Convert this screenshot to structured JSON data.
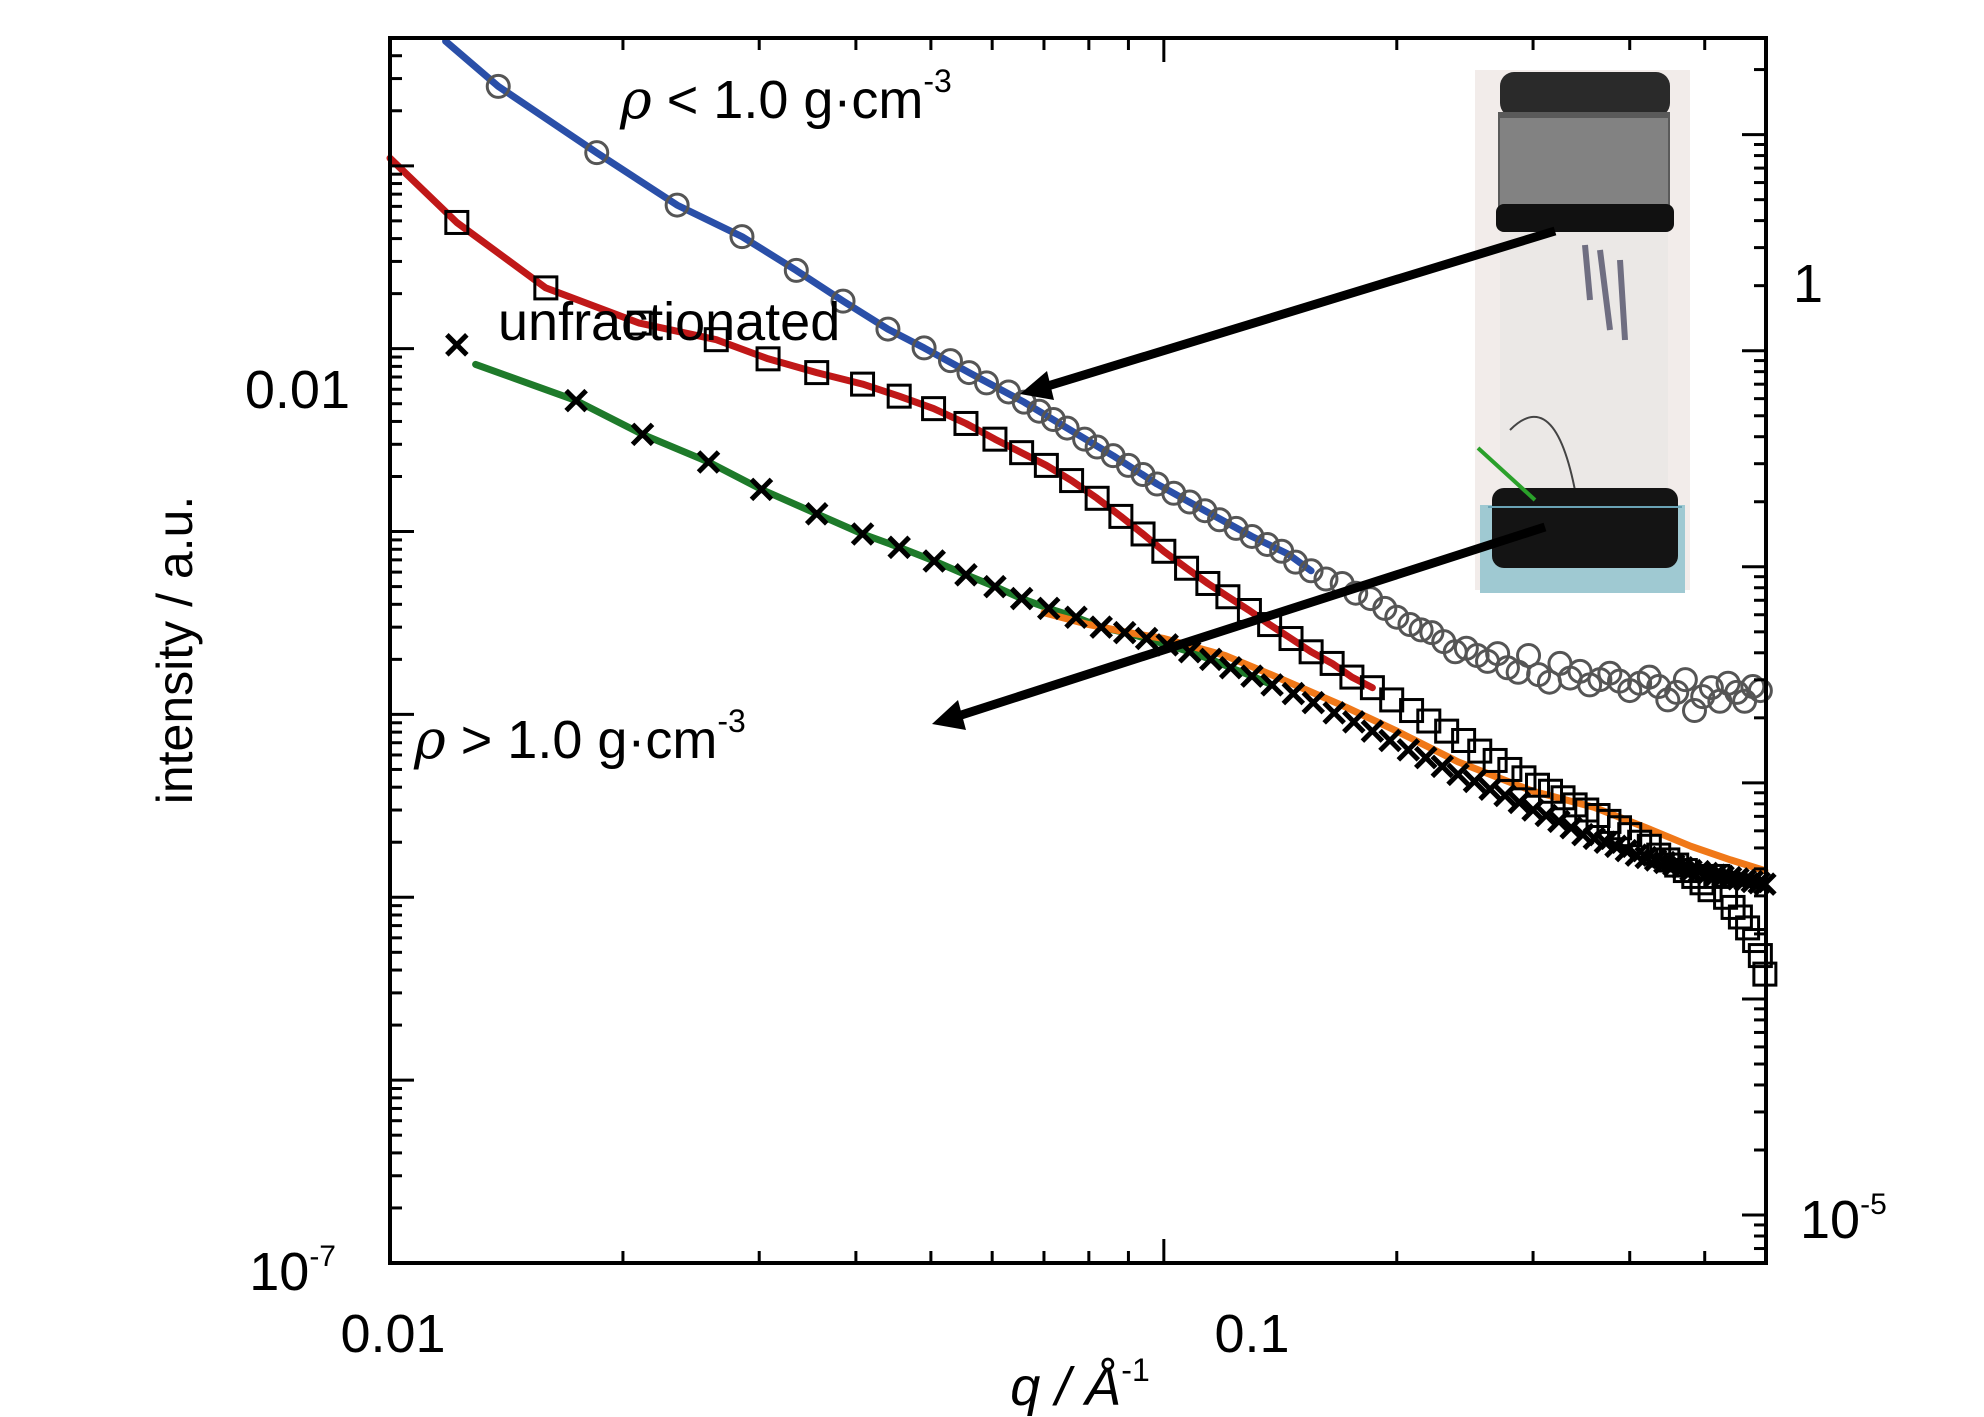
{
  "chart_data": {
    "type": "scatter",
    "title": "",
    "xlabel": "q / Å",
    "xlabel_sup": "-1",
    "ylabel": "intensity / a.u.",
    "x_scale": "log",
    "y_scale": "log",
    "xlim": [
      0.01,
      0.6
    ],
    "ylim_left": [
      1e-07,
      0.5
    ],
    "ylim_right": [
      6e-06,
      2.8
    ],
    "x_tick_labels": [
      "0.01",
      "0.1"
    ],
    "y_left_tick_labels": [
      "0.01",
      "10",
      "-7"
    ],
    "y_right_tick_labels": [
      "1",
      "10",
      "-5"
    ],
    "annotations": {
      "low_density": {
        "rho": "ρ",
        "text": " < 1.0 g·cm",
        "sup": "-3"
      },
      "unfractionated": "unfractionated",
      "high_density": {
        "rho": "ρ",
        "text": " > 1.0 g·cm",
        "sup": "-3"
      }
    },
    "colors": {
      "low_density_fit": "#2a4fa8",
      "unfractionated_fit": "#c01818",
      "high_density_fit": "#1e7a2a",
      "orange_fit": "#f07818",
      "markers": "#000000",
      "low_density_markers": "#555555"
    },
    "series": [
      {
        "marker": "circle",
        "x": [
          0.0138,
          0.0185,
          0.0235,
          0.0285,
          0.0335,
          0.0385,
          0.044,
          0.049,
          0.053,
          0.056,
          0.059,
          0.063,
          0.066,
          0.069,
          0.072,
          0.075,
          0.079,
          0.082,
          0.086,
          0.09,
          0.094,
          0.098,
          0.103,
          0.108,
          0.113,
          0.118,
          0.124,
          0.13,
          0.136,
          0.142,
          0.148,
          0.155,
          0.162,
          0.17,
          0.177,
          0.185,
          0.193,
          0.2,
          0.208,
          0.215,
          0.222,
          0.23,
          0.238,
          0.246,
          0.254,
          0.262,
          0.27,
          0.278,
          0.287,
          0.296,
          0.305,
          0.315,
          0.325,
          0.335,
          0.345,
          0.355,
          0.366,
          0.377,
          0.388,
          0.4,
          0.412,
          0.424,
          0.436,
          0.448,
          0.46,
          0.472,
          0.485,
          0.497,
          0.51,
          0.523,
          0.536,
          0.55,
          0.563,
          0.577,
          0.59
        ],
        "y": [
          0.272,
          0.118,
          0.061,
          0.041,
          0.0268,
          0.0182,
          0.0128,
          0.0101,
          0.0086,
          0.0074,
          0.0065,
          0.0058,
          0.0051,
          0.00455,
          0.0041,
          0.00368,
          0.0032,
          0.0029,
          0.0026,
          0.0023,
          0.00205,
          0.00182,
          0.00162,
          0.00145,
          0.0013,
          0.00116,
          0.00104,
          0.00094,
          0.00085,
          0.00078,
          0.00068,
          0.00061,
          0.00055,
          0.00052,
          0.00046,
          0.00043,
          0.00038,
          0.00034,
          0.00031,
          0.00029,
          0.00028,
          0.00025,
          0.00022,
          0.00023,
          0.00021,
          0.000195,
          0.000215,
          0.00018,
          0.00017,
          0.00021,
          0.000165,
          0.00015,
          0.00019,
          0.000158,
          0.000172,
          0.000145,
          0.000155,
          0.000168,
          0.000152,
          0.000135,
          0.000148,
          0.00016,
          0.000142,
          0.00012,
          0.000132,
          0.000155,
          0.000105,
          0.000125,
          0.00014,
          0.000118,
          0.000148,
          0.000132,
          0.000118,
          0.000142,
          0.000135
        ]
      },
      {
        "name": "unfractionated",
        "marker": "square",
        "x": [
          0.0122,
          0.0159,
          0.021,
          0.0264,
          0.0308,
          0.0356,
          0.0408,
          0.0455,
          0.0504,
          0.0555,
          0.0605,
          0.0655,
          0.0705,
          0.076,
          0.082,
          0.088,
          0.094,
          0.1,
          0.107,
          0.114,
          0.121,
          0.129,
          0.137,
          0.146,
          0.155,
          0.165,
          0.175,
          0.186,
          0.197,
          0.209,
          0.22,
          0.232,
          0.244,
          0.256,
          0.268,
          0.28,
          0.292,
          0.304,
          0.316,
          0.328,
          0.34,
          0.352,
          0.364,
          0.376,
          0.388,
          0.4,
          0.412,
          0.424,
          0.436,
          0.448,
          0.46,
          0.472,
          0.484,
          0.496,
          0.508,
          0.52,
          0.532,
          0.544,
          0.556,
          0.568,
          0.58,
          0.59,
          0.598
        ],
        "y": [
          0.049,
          0.0215,
          0.0138,
          0.0112,
          0.0088,
          0.0074,
          0.0064,
          0.0055,
          0.0047,
          0.0039,
          0.0032,
          0.0027,
          0.0023,
          0.0019,
          0.00152,
          0.00121,
          0.00097,
          0.00078,
          0.00063,
          0.00052,
          0.00044,
          0.00037,
          0.00031,
          0.00026,
          0.00022,
          0.00019,
          0.00016,
          0.00014,
          0.00012,
          0.000105,
          9.2e-05,
          8.1e-05,
          7.2e-05,
          6.3e-05,
          5.6e-05,
          5e-05,
          4.5e-05,
          4.1e-05,
          3.8e-05,
          3.5e-05,
          3.2e-05,
          3e-05,
          2.8e-05,
          2.6e-05,
          2.4e-05,
          2.2e-05,
          2e-05,
          1.9e-05,
          1.7e-05,
          1.6e-05,
          1.5e-05,
          1.4e-05,
          1.3e-05,
          1.2e-05,
          1.1e-05,
          1.3e-05,
          1e-05,
          8.8e-06,
          7.8e-06,
          6.8e-06,
          5.8e-06,
          4.8e-06,
          3.8e-06
        ]
      },
      {
        "marker": "cross",
        "x": [
          0.0122,
          0.0174,
          0.0212,
          0.0258,
          0.0302,
          0.0356,
          0.0408,
          0.0455,
          0.0505,
          0.0555,
          0.0605,
          0.0655,
          0.071,
          0.077,
          0.083,
          0.089,
          0.095,
          0.101,
          0.108,
          0.115,
          0.122,
          0.13,
          0.138,
          0.147,
          0.156,
          0.166,
          0.176,
          0.186,
          0.196,
          0.207,
          0.218,
          0.229,
          0.24,
          0.252,
          0.264,
          0.276,
          0.288,
          0.3,
          0.312,
          0.324,
          0.336,
          0.348,
          0.36,
          0.372,
          0.384,
          0.396,
          0.408,
          0.42,
          0.432,
          0.444,
          0.456,
          0.468,
          0.48,
          0.492,
          0.504,
          0.516,
          0.528,
          0.54,
          0.552,
          0.564,
          0.576,
          0.588,
          0.598
        ],
        "y": [
          0.0105,
          0.0052,
          0.0034,
          0.0024,
          0.0017,
          0.00125,
          0.00097,
          0.00082,
          0.00069,
          0.00058,
          0.0005,
          0.00043,
          0.00038,
          0.00034,
          0.0003,
          0.00028,
          0.00026,
          0.00024,
          0.00022,
          0.0002,
          0.00018,
          0.000162,
          0.000145,
          0.00013,
          0.000116,
          0.000102,
          9.1e-05,
          8.1e-05,
          7.2e-05,
          6.4e-05,
          5.8e-05,
          5.2e-05,
          4.7e-05,
          4.3e-05,
          3.9e-05,
          3.6e-05,
          3.3e-05,
          3e-05,
          2.8e-05,
          2.6e-05,
          2.4e-05,
          2.2e-05,
          2.1e-05,
          2e-05,
          1.9e-05,
          1.8e-05,
          1.7e-05,
          1.65e-05,
          1.6e-05,
          1.55e-05,
          1.5e-05,
          1.45e-05,
          1.4e-05,
          1.38e-05,
          1.35e-05,
          1.32e-05,
          1.3e-05,
          1.28e-05,
          1.26e-05,
          1.24e-05,
          1.22e-05,
          1.2e-05,
          1.18e-05
        ]
      }
    ],
    "fits": [
      {
        "color_key": "low_density_fit",
        "x": [
          0.0118,
          0.0138,
          0.0185,
          0.0235,
          0.0285,
          0.0335,
          0.0385,
          0.044,
          0.049,
          0.056,
          0.066,
          0.075,
          0.086,
          0.098,
          0.113,
          0.13,
          0.145,
          0.155
        ],
        "y": [
          0.48,
          0.272,
          0.118,
          0.061,
          0.041,
          0.0268,
          0.0182,
          0.0128,
          0.0101,
          0.0074,
          0.0051,
          0.00368,
          0.0026,
          0.00182,
          0.0013,
          0.00094,
          0.00075,
          0.00061
        ]
      },
      {
        "color_key": "unfractionated_fit",
        "x": [
          0.01,
          0.0122,
          0.0159,
          0.021,
          0.0264,
          0.0308,
          0.0356,
          0.0408,
          0.0455,
          0.0504,
          0.0555,
          0.0605,
          0.0655,
          0.0705,
          0.076,
          0.082,
          0.088,
          0.094,
          0.1,
          0.107,
          0.114,
          0.121,
          0.129,
          0.137,
          0.146,
          0.155,
          0.165,
          0.175,
          0.186
        ],
        "y": [
          0.11,
          0.049,
          0.0215,
          0.0138,
          0.0112,
          0.0088,
          0.0074,
          0.0064,
          0.0055,
          0.0047,
          0.0039,
          0.0032,
          0.0027,
          0.0023,
          0.0019,
          0.00152,
          0.00121,
          0.00097,
          0.00078,
          0.00063,
          0.00052,
          0.00044,
          0.00037,
          0.00031,
          0.00026,
          0.00022,
          0.00019,
          0.00016,
          0.00014
        ]
      },
      {
        "color_key": "high_density_fit",
        "x": [
          0.0129,
          0.0174,
          0.0212,
          0.0258,
          0.0302,
          0.0356,
          0.0408,
          0.0455,
          0.0505,
          0.0555,
          0.0605,
          0.0655,
          0.071,
          0.077,
          0.083,
          0.089,
          0.095,
          0.101,
          0.108,
          0.115,
          0.122,
          0.13,
          0.138
        ],
        "y": [
          0.0082,
          0.0052,
          0.0034,
          0.0024,
          0.0017,
          0.00125,
          0.00097,
          0.00082,
          0.00069,
          0.00058,
          0.0005,
          0.00043,
          0.00038,
          0.00034,
          0.0003,
          0.00028,
          0.00026,
          0.00024,
          0.00022,
          0.0002,
          0.00018,
          0.000162,
          0.000145
        ]
      },
      {
        "color_key": "orange_fit",
        "x": [
          0.07,
          0.08,
          0.09,
          0.1,
          0.12,
          0.14,
          0.17,
          0.2,
          0.24,
          0.3,
          0.36,
          0.42,
          0.48,
          0.54,
          0.598
        ],
        "y": [
          0.00036,
          0.00031,
          0.00028,
          0.00026,
          0.00021,
          0.00016,
          0.000112,
          8.1e-05,
          5.5e-05,
          3.8e-05,
          3.1e-05,
          2.4e-05,
          1.9e-05,
          1.6e-05,
          1.4e-05
        ]
      }
    ]
  }
}
